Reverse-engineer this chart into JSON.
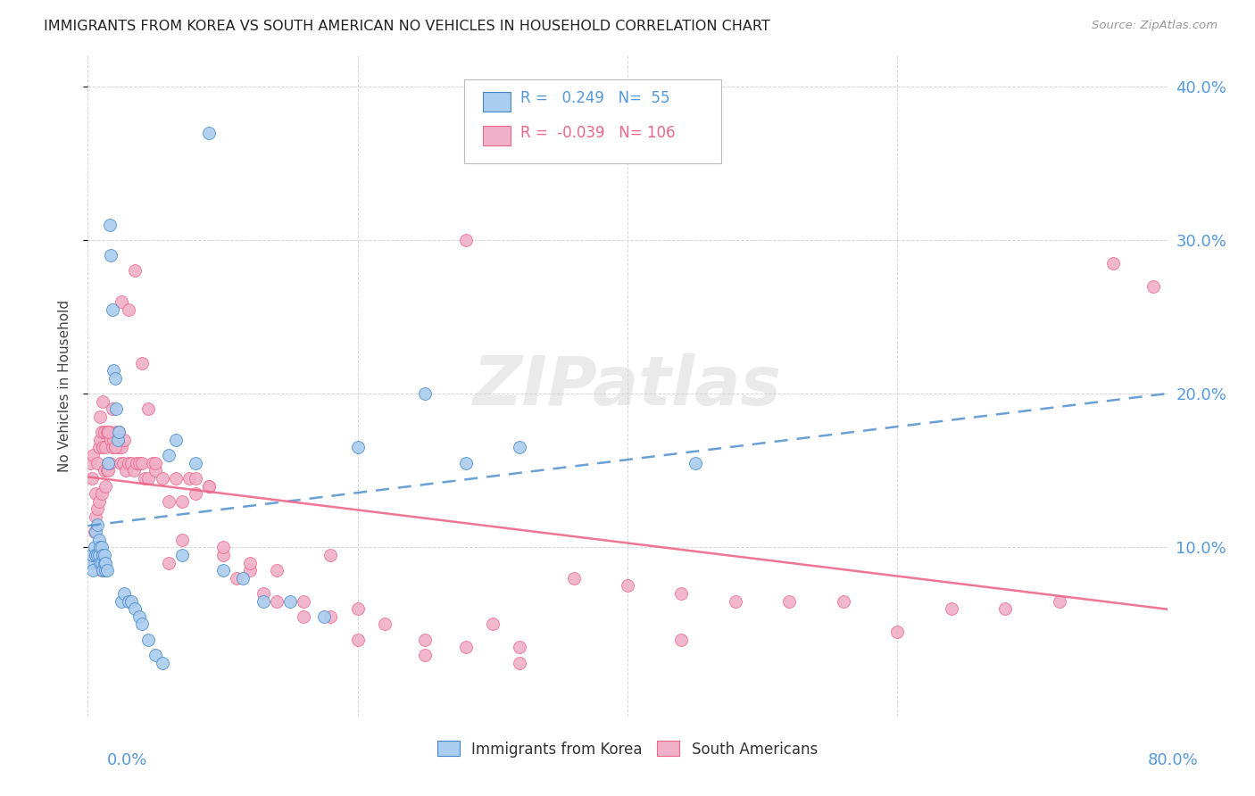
{
  "title": "IMMIGRANTS FROM KOREA VS SOUTH AMERICAN NO VEHICLES IN HOUSEHOLD CORRELATION CHART",
  "source": "Source: ZipAtlas.com",
  "ylabel": "No Vehicles in Household",
  "xlim": [
    0.0,
    0.8
  ],
  "ylim": [
    -0.01,
    0.42
  ],
  "legend_korea_R": "0.249",
  "legend_korea_N": "55",
  "legend_sa_R": "-0.039",
  "legend_sa_N": "106",
  "korea_color": "#aaccee",
  "sa_color": "#f0b0c8",
  "trendline_korea_color": "#4488cc",
  "trendline_sa_color": "#ee6688",
  "watermark": "ZIPatlas",
  "background_color": "#ffffff",
  "korea_points_x": [
    0.002,
    0.003,
    0.004,
    0.005,
    0.006,
    0.006,
    0.007,
    0.007,
    0.008,
    0.008,
    0.009,
    0.009,
    0.01,
    0.01,
    0.011,
    0.011,
    0.012,
    0.012,
    0.013,
    0.013,
    0.014,
    0.015,
    0.016,
    0.017,
    0.018,
    0.019,
    0.02,
    0.021,
    0.022,
    0.023,
    0.025,
    0.027,
    0.03,
    0.032,
    0.035,
    0.038,
    0.04,
    0.045,
    0.05,
    0.055,
    0.06,
    0.065,
    0.07,
    0.08,
    0.09,
    0.1,
    0.115,
    0.13,
    0.15,
    0.175,
    0.2,
    0.25,
    0.28,
    0.32,
    0.45
  ],
  "korea_points_y": [
    0.09,
    0.095,
    0.085,
    0.1,
    0.095,
    0.11,
    0.095,
    0.115,
    0.095,
    0.105,
    0.1,
    0.09,
    0.09,
    0.1,
    0.085,
    0.095,
    0.09,
    0.095,
    0.085,
    0.09,
    0.085,
    0.155,
    0.31,
    0.29,
    0.255,
    0.215,
    0.21,
    0.19,
    0.17,
    0.175,
    0.065,
    0.07,
    0.065,
    0.065,
    0.06,
    0.055,
    0.05,
    0.04,
    0.03,
    0.025,
    0.16,
    0.17,
    0.095,
    0.155,
    0.37,
    0.085,
    0.08,
    0.065,
    0.065,
    0.055,
    0.165,
    0.2,
    0.155,
    0.165,
    0.155
  ],
  "sa_points_x": [
    0.002,
    0.003,
    0.004,
    0.005,
    0.005,
    0.006,
    0.006,
    0.007,
    0.007,
    0.008,
    0.008,
    0.009,
    0.009,
    0.01,
    0.01,
    0.011,
    0.011,
    0.012,
    0.012,
    0.013,
    0.013,
    0.014,
    0.014,
    0.015,
    0.015,
    0.016,
    0.016,
    0.017,
    0.018,
    0.018,
    0.019,
    0.02,
    0.021,
    0.022,
    0.023,
    0.024,
    0.025,
    0.026,
    0.027,
    0.028,
    0.03,
    0.032,
    0.034,
    0.036,
    0.038,
    0.04,
    0.042,
    0.045,
    0.048,
    0.05,
    0.055,
    0.06,
    0.065,
    0.07,
    0.075,
    0.08,
    0.09,
    0.1,
    0.11,
    0.12,
    0.13,
    0.14,
    0.16,
    0.18,
    0.2,
    0.22,
    0.25,
    0.28,
    0.32,
    0.36,
    0.4,
    0.44,
    0.48,
    0.52,
    0.56,
    0.6,
    0.64,
    0.68,
    0.72,
    0.76,
    0.79,
    0.005,
    0.01,
    0.015,
    0.02,
    0.025,
    0.03,
    0.035,
    0.04,
    0.045,
    0.05,
    0.06,
    0.07,
    0.08,
    0.09,
    0.1,
    0.12,
    0.14,
    0.16,
    0.18,
    0.2,
    0.25,
    0.3,
    0.32,
    0.28,
    0.44
  ],
  "sa_points_y": [
    0.155,
    0.145,
    0.16,
    0.09,
    0.11,
    0.12,
    0.135,
    0.125,
    0.155,
    0.13,
    0.165,
    0.17,
    0.185,
    0.135,
    0.175,
    0.165,
    0.195,
    0.15,
    0.175,
    0.14,
    0.165,
    0.15,
    0.175,
    0.15,
    0.175,
    0.155,
    0.175,
    0.17,
    0.165,
    0.19,
    0.17,
    0.165,
    0.175,
    0.165,
    0.175,
    0.155,
    0.165,
    0.155,
    0.17,
    0.15,
    0.155,
    0.155,
    0.15,
    0.155,
    0.155,
    0.155,
    0.145,
    0.145,
    0.155,
    0.15,
    0.145,
    0.13,
    0.145,
    0.13,
    0.145,
    0.135,
    0.14,
    0.095,
    0.08,
    0.085,
    0.07,
    0.065,
    0.065,
    0.055,
    0.06,
    0.05,
    0.04,
    0.035,
    0.035,
    0.08,
    0.075,
    0.07,
    0.065,
    0.065,
    0.065,
    0.045,
    0.06,
    0.06,
    0.065,
    0.285,
    0.27,
    0.095,
    0.085,
    0.175,
    0.165,
    0.26,
    0.255,
    0.28,
    0.22,
    0.19,
    0.155,
    0.09,
    0.105,
    0.145,
    0.14,
    0.1,
    0.09,
    0.085,
    0.055,
    0.095,
    0.04,
    0.03,
    0.05,
    0.025,
    0.3,
    0.04
  ]
}
